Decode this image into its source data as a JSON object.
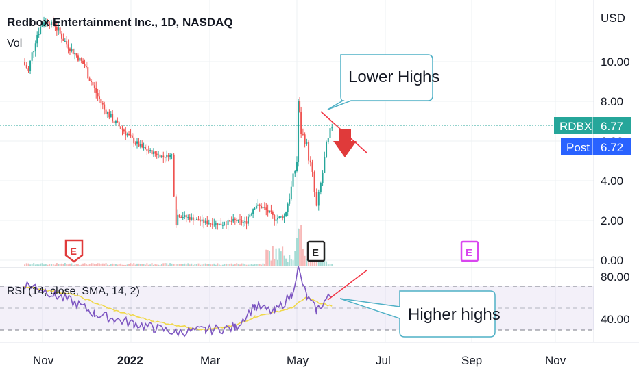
{
  "header": {
    "title": "Redbox Entertainment Inc., 1D, NASDAQ",
    "vol_label": "Vol",
    "currency": "USD"
  },
  "price_axis": {
    "ticks": [
      "10.00",
      "8.00",
      "6.00",
      "4.00",
      "2.00",
      "0.00"
    ]
  },
  "rsi_axis": {
    "ticks": [
      "80.00",
      "40.00"
    ]
  },
  "time_axis": {
    "labels": [
      "Nov",
      "2022",
      "Mar",
      "May",
      "Jul",
      "Sep",
      "Nov"
    ]
  },
  "price_badges": {
    "last": {
      "label": "RDBX",
      "value": "6.77",
      "color": "#26a69a"
    },
    "post": {
      "label": "Post",
      "value": "6.72",
      "color": "#2962ff"
    }
  },
  "rsi_legend": "RSI (14, close, SMA, 14, 2)",
  "annotations": {
    "lower_highs": "Lower Highs",
    "higher_highs": "Higher highs"
  },
  "earnings_markers": [
    "E",
    "E",
    "E"
  ],
  "colors": {
    "up": "#26a69a",
    "down": "#ef5350",
    "rsi_line": "#7e57c2",
    "rsi_sma": "#f0d84a",
    "trend_line": "#f23645",
    "callout_border": "#4fb0c6",
    "arrow": "#e03a3a"
  },
  "chart_data": {
    "type": "candlestick",
    "symbol": "RDBX",
    "interval": "1D",
    "exchange": "NASDAQ",
    "last_price": 6.77,
    "post_price": 6.72,
    "ylim": [
      0,
      12
    ],
    "rsi_ylim": [
      20,
      90
    ],
    "rsi_levels": [
      70,
      50,
      30
    ],
    "close_series": [
      [
        "2021-10-18",
        10.0
      ],
      [
        "2021-10-22",
        9.5
      ],
      [
        "2021-10-27",
        11.2
      ],
      [
        "2021-11-02",
        12.1
      ],
      [
        "2021-11-10",
        11.8
      ],
      [
        "2021-11-17",
        11.0
      ],
      [
        "2021-11-24",
        10.4
      ],
      [
        "2021-12-01",
        9.8
      ],
      [
        "2021-12-08",
        8.6
      ],
      [
        "2021-12-15",
        7.6
      ],
      [
        "2021-12-22",
        7.0
      ],
      [
        "2021-12-29",
        6.5
      ],
      [
        "2022-01-05",
        6.0
      ],
      [
        "2022-01-12",
        5.6
      ],
      [
        "2022-01-19",
        5.4
      ],
      [
        "2022-01-26",
        5.2
      ],
      [
        "2022-02-01",
        5.3
      ],
      [
        "2022-02-04",
        2.3
      ],
      [
        "2022-02-15",
        2.1
      ],
      [
        "2022-02-25",
        1.9
      ],
      [
        "2022-03-08",
        1.8
      ],
      [
        "2022-03-18",
        2.0
      ],
      [
        "2022-03-25",
        1.9
      ],
      [
        "2022-04-01",
        2.8
      ],
      [
        "2022-04-08",
        2.6
      ],
      [
        "2022-04-15",
        2.1
      ],
      [
        "2022-04-22",
        2.2
      ],
      [
        "2022-04-27",
        3.6
      ],
      [
        "2022-05-01",
        5.0
      ],
      [
        "2022-05-02",
        8.0
      ],
      [
        "2022-05-04",
        6.5
      ],
      [
        "2022-05-08",
        5.8
      ],
      [
        "2022-05-12",
        4.2
      ],
      [
        "2022-05-15",
        2.6
      ],
      [
        "2022-05-18",
        3.8
      ],
      [
        "2022-05-22",
        5.6
      ],
      [
        "2022-05-26",
        6.8
      ]
    ],
    "rsi_series": [
      [
        "2021-10-18",
        72
      ],
      [
        "2021-10-27",
        70
      ],
      [
        "2021-11-10",
        62
      ],
      [
        "2021-11-24",
        55
      ],
      [
        "2021-12-08",
        45
      ],
      [
        "2021-12-22",
        40
      ],
      [
        "2022-01-05",
        36
      ],
      [
        "2022-01-19",
        32
      ],
      [
        "2022-02-04",
        28
      ],
      [
        "2022-02-25",
        30
      ],
      [
        "2022-03-18",
        32
      ],
      [
        "2022-04-01",
        52
      ],
      [
        "2022-04-15",
        46
      ],
      [
        "2022-04-27",
        62
      ],
      [
        "2022-05-02",
        86
      ],
      [
        "2022-05-08",
        60
      ],
      [
        "2022-05-15",
        48
      ],
      [
        "2022-05-22",
        58
      ],
      [
        "2022-05-26",
        62
      ]
    ],
    "rsi_sma_series": [
      [
        "2021-10-18",
        70
      ],
      [
        "2021-11-24",
        62
      ],
      [
        "2021-12-22",
        48
      ],
      [
        "2022-01-19",
        38
      ],
      [
        "2022-02-25",
        30
      ],
      [
        "2022-03-18",
        34
      ],
      [
        "2022-04-01",
        42
      ],
      [
        "2022-04-27",
        50
      ],
      [
        "2022-05-08",
        60
      ],
      [
        "2022-05-18",
        54
      ],
      [
        "2022-05-26",
        52
      ]
    ]
  }
}
